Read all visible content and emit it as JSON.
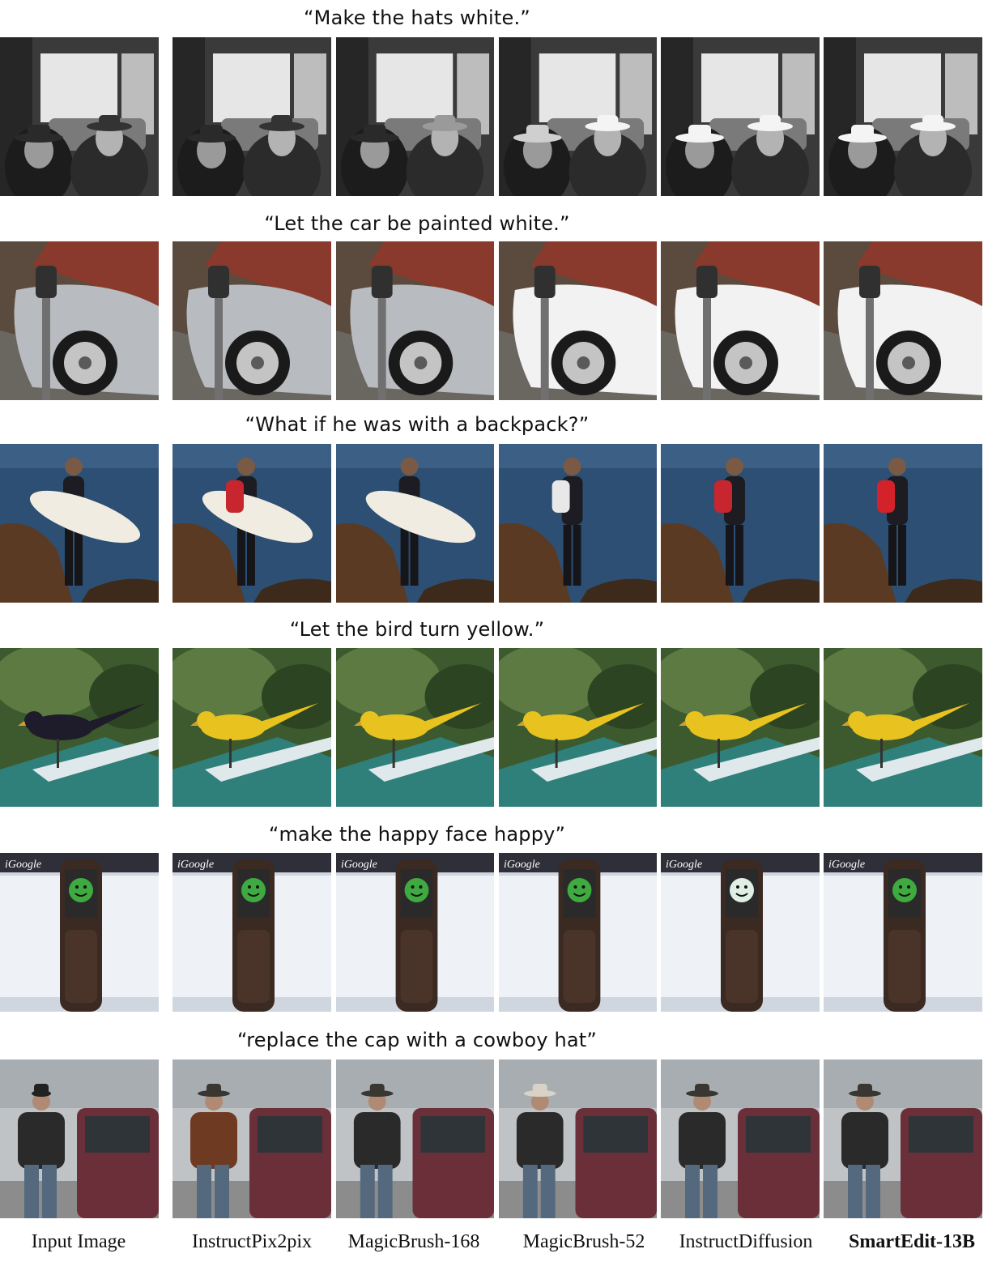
{
  "figure": {
    "rows": [
      {
        "caption": "“Make the hats white.”",
        "scene": "hats"
      },
      {
        "caption": "“Let the car be painted white.”",
        "scene": "car"
      },
      {
        "caption": "“What if he was with a backpack?”",
        "scene": "backpack"
      },
      {
        "caption": "“Let the bird turn yellow.”",
        "scene": "bird"
      },
      {
        "caption": "“make the happy face happy”",
        "scene": "phone"
      },
      {
        "caption": "“replace the cap with a cowboy hat”",
        "scene": "cowboy"
      }
    ],
    "columns": [
      {
        "label": "Input Image",
        "bold": false
      },
      {
        "label": "InstructPix2pix",
        "bold": false
      },
      {
        "label": "MagicBrush-168",
        "bold": false
      },
      {
        "label": "MagicBrush-52",
        "bold": false
      },
      {
        "label": "InstructDiffusion",
        "bold": false
      },
      {
        "label": "SmartEdit-13B",
        "bold": true
      }
    ],
    "phone_screen_text": "iGoogle",
    "colors": {
      "sea": "#2d4f73",
      "bird_yellow": "#e8c21f",
      "car_silver": "#b8bcc0",
      "car_white": "#f2f2f2",
      "truck_maroon": "#6b2f3a"
    }
  }
}
